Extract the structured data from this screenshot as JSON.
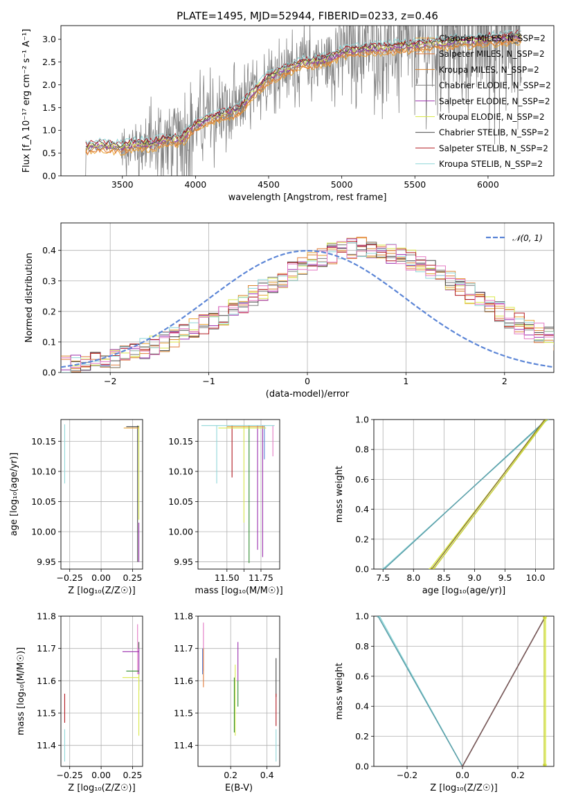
{
  "figure": {
    "title": "PLATE=1495, MJD=52944, FIBERID=0233, z=0.46"
  },
  "colors": {
    "series": [
      "#e8a233",
      "#e07b3a",
      "#d9822b",
      "#7a7a7a",
      "#9b2fae",
      "#d9e84a",
      "#444444",
      "#b0171f",
      "#8fd6d8"
    ],
    "gaussian": "#5b85d6",
    "grid": "#b0b0b0"
  },
  "chart_data": [
    {
      "id": "spectrum",
      "type": "line",
      "title": "PLATE=1495, MJD=52944, FIBERID=0233, z=0.46",
      "xlabel": "wavelength [Angstrom, rest frame]",
      "ylabel": "Flux [f_λ 10⁻¹⁷ erg cm⁻² s⁻¹ A⁻¹]",
      "xlim": [
        3080,
        6450
      ],
      "ylim": [
        0,
        3.3
      ],
      "xticks": [
        3500,
        4000,
        4500,
        5000,
        5500,
        6000
      ],
      "yticks": [
        0.0,
        0.5,
        1.0,
        1.5,
        2.0,
        2.5,
        3.0
      ],
      "grid": false,
      "legend_position": "top-right",
      "series": [
        {
          "name": "Chabrier MILES, N_SSP=2",
          "color": "#e8a233"
        },
        {
          "name": "Salpeter MILES, N_SSP=2",
          "color": "#e07b3a"
        },
        {
          "name": "Kroupa MILES, N_SSP=2",
          "color": "#d9822b"
        },
        {
          "name": "Chabrier ELODIE, N_SSP=2",
          "color": "#7a7a7a"
        },
        {
          "name": "Salpeter ELODIE, N_SSP=2",
          "color": "#9b2fae"
        },
        {
          "name": "Kroupa ELODIE, N_SSP=2",
          "color": "#d9e84a"
        },
        {
          "name": "Chabrier STELIB, N_SSP=2",
          "color": "#444444"
        },
        {
          "name": "Salpeter STELIB, N_SSP=2",
          "color": "#b0171f"
        },
        {
          "name": "Kroupa STELIB, N_SSP=2",
          "color": "#8fd6d8"
        }
      ],
      "model_trend": {
        "x": [
          3250,
          3300,
          3400,
          3500,
          3600,
          3700,
          3800,
          3900,
          4000,
          4100,
          4200,
          4300,
          4400,
          4500,
          4600,
          4700,
          4800,
          4900,
          5000,
          5100,
          5200,
          5300,
          5400,
          5500,
          5600,
          5700,
          5800,
          5900,
          6000,
          6100,
          6200
        ],
        "y": [
          0.6,
          0.65,
          0.65,
          0.62,
          0.7,
          0.68,
          0.8,
          0.78,
          1.1,
          1.25,
          1.35,
          1.45,
          1.85,
          2.15,
          2.3,
          2.45,
          2.5,
          2.55,
          2.7,
          2.75,
          2.8,
          2.8,
          2.85,
          2.85,
          2.9,
          2.9,
          2.95,
          2.95,
          3.0,
          3.0,
          3.05
        ]
      },
      "data_envelope": {
        "x": [
          3500,
          3600,
          3700,
          3800,
          3900,
          4000,
          4100,
          4200,
          4300,
          4400,
          4500,
          4600,
          4700,
          4800,
          4900,
          5000,
          5100,
          5200,
          5300,
          5400,
          5500,
          5600,
          5700,
          5800,
          5900,
          6000,
          6100,
          6200
        ],
        "noise": [
          0.5,
          0.6,
          0.7,
          0.9,
          0.9,
          0.8,
          0.8,
          0.8,
          0.7,
          0.5,
          0.5,
          0.6,
          0.6,
          0.7,
          0.7,
          0.9,
          0.9,
          1.0,
          1.0,
          1.1,
          1.1,
          1.2,
          1.3,
          1.3,
          1.4,
          1.5,
          1.5,
          1.6
        ]
      }
    },
    {
      "id": "residuals",
      "type": "line",
      "xlabel": "(data-model)/error",
      "ylabel": "Normed distribution",
      "xlim": [
        -2.5,
        2.5
      ],
      "ylim": [
        0,
        0.49
      ],
      "xticks": [
        -2,
        -1,
        0,
        1,
        2
      ],
      "yticks": [
        0.0,
        0.1,
        0.2,
        0.3,
        0.4
      ],
      "grid": true,
      "legend_position": "top-right",
      "gaussian": {
        "label": "𝒩(0, 1)",
        "mu": 0,
        "sigma": 1
      },
      "histogram": {
        "bin_edges_start": -2.5,
        "bin_width": 0.1,
        "mean_profile": [
          0.02,
          0.025,
          0.03,
          0.035,
          0.04,
          0.05,
          0.06,
          0.07,
          0.08,
          0.09,
          0.1,
          0.115,
          0.13,
          0.145,
          0.16,
          0.175,
          0.19,
          0.21,
          0.23,
          0.25,
          0.27,
          0.29,
          0.31,
          0.33,
          0.35,
          0.365,
          0.38,
          0.39,
          0.4,
          0.405,
          0.41,
          0.405,
          0.4,
          0.39,
          0.38,
          0.37,
          0.355,
          0.34,
          0.32,
          0.3,
          0.28,
          0.26,
          0.24,
          0.22,
          0.2,
          0.18,
          0.16,
          0.145,
          0.13,
          0.115,
          0.1
        ]
      }
    },
    {
      "id": "age-vs-Z",
      "type": "scatter",
      "xlabel": "Z [log₁₀(Z/Z☉)]",
      "ylabel": "age  [log₁₀(age/yr)]",
      "xlim": [
        -0.32,
        0.33
      ],
      "ylim": [
        9.938,
        10.186
      ],
      "xticks": [
        -0.25,
        0.0,
        0.25
      ],
      "xticklabels": [
        "−0.25",
        "0.00",
        "0.25"
      ],
      "yticks": [
        9.95,
        10.0,
        10.05,
        10.1,
        10.15
      ],
      "grid": true,
      "error_bars": [
        {
          "x": -0.29,
          "y": 10.13,
          "ylo": 10.08,
          "yhi": 10.178,
          "color": "#8fd6d8"
        },
        {
          "x": 0.29,
          "y": 10.06,
          "ylo": 9.95,
          "yhi": 10.176,
          "color": "#444444"
        },
        {
          "x": 0.3,
          "y": 10.1,
          "ylo": 10.02,
          "yhi": 10.176,
          "color": "#d9e84a"
        },
        {
          "x": 0.3,
          "y": 10.0,
          "ylo": 9.95,
          "yhi": 10.015,
          "color": "#9b2fae"
        }
      ],
      "x_error_bars": [
        {
          "y": 10.172,
          "xlo": 0.18,
          "xhi": 0.3,
          "color": "#e8a233"
        },
        {
          "y": 10.174,
          "xlo": 0.2,
          "xhi": 0.3,
          "color": "#444444"
        }
      ]
    },
    {
      "id": "age-vs-mass",
      "type": "scatter",
      "xlabel": "mass [log₁₀(M/M☉)]",
      "ylabel": "",
      "xlim": [
        11.33,
        11.81
      ],
      "ylim": [
        9.938,
        10.186
      ],
      "xticks": [
        11.5,
        11.6,
        11.7
      ],
      "xticklabels": [
        "11.50",
        "",
        "11.75"
      ],
      "yticks": [
        9.95,
        10.0,
        10.05,
        10.1,
        10.15
      ],
      "grid": true,
      "y_error_bars": [
        {
          "x": 11.44,
          "ylo": 10.08,
          "yhi": 10.176,
          "color": "#8fd6d8"
        },
        {
          "x": 11.53,
          "ylo": 10.09,
          "yhi": 10.176,
          "color": "#b0171f"
        },
        {
          "x": 11.6,
          "ylo": 10.015,
          "yhi": 10.176,
          "color": "#d9e84a"
        },
        {
          "x": 11.63,
          "ylo": 9.948,
          "yhi": 10.176,
          "color": "#2d8a2d"
        },
        {
          "x": 11.68,
          "ylo": 9.97,
          "yhi": 10.176,
          "color": "#9b2fae"
        },
        {
          "x": 11.71,
          "ylo": 9.958,
          "yhi": 10.176,
          "color": "#9b2fae"
        },
        {
          "x": 11.72,
          "ylo": 10.12,
          "yhi": 10.176,
          "color": "#5b85d6"
        },
        {
          "x": 11.77,
          "ylo": 10.125,
          "yhi": 10.176,
          "color": "#e377c2"
        }
      ],
      "x_error_bars": [
        {
          "y": 10.176,
          "xlo": 11.35,
          "xhi": 11.78,
          "color": "#8fd6d8"
        },
        {
          "y": 10.174,
          "xlo": 11.5,
          "xhi": 11.72,
          "color": "#e8a233"
        },
        {
          "y": 10.172,
          "xlo": 11.45,
          "xhi": 11.73,
          "color": "#d9e84a"
        }
      ]
    },
    {
      "id": "massweight-vs-age",
      "type": "line",
      "xlabel": "age  [log₁₀(age/yr)]",
      "ylabel": "mass weight",
      "xlim": [
        7.35,
        10.3
      ],
      "ylim": [
        0,
        1.0
      ],
      "xticks": [
        7.5,
        8.0,
        8.5,
        9.0,
        9.5,
        10.0
      ],
      "yticks": [
        0.0,
        0.2,
        0.4,
        0.6,
        0.8,
        1.0
      ],
      "grid": true,
      "series": [
        {
          "x": [
            7.5,
            10.2
          ],
          "y": [
            0.0,
            1.0
          ],
          "color": "#8fd6d8"
        },
        {
          "x": [
            7.52,
            10.18
          ],
          "y": [
            0.0,
            1.0
          ],
          "color": "#5b9ea8"
        },
        {
          "x": [
            8.27,
            10.17
          ],
          "y": [
            0.0,
            1.0
          ],
          "color": "#d9e84a"
        },
        {
          "x": [
            8.3,
            10.15
          ],
          "y": [
            0.0,
            1.0
          ],
          "color": "#8a7a30"
        },
        {
          "x": [
            8.33,
            10.18
          ],
          "y": [
            0.0,
            1.0
          ],
          "color": "#c9d23a"
        }
      ]
    },
    {
      "id": "mass-vs-Z",
      "type": "scatter",
      "xlabel": "Z [log₁₀(Z/Z☉)]",
      "ylabel": "mass [log₁₀(M/M☉)]",
      "xlim": [
        -0.32,
        0.33
      ],
      "ylim": [
        11.335,
        11.8
      ],
      "xticks": [
        -0.25,
        0.0,
        0.25
      ],
      "xticklabels": [
        "−0.25",
        "0.00",
        "0.25"
      ],
      "yticks": [
        11.4,
        11.5,
        11.6,
        11.7,
        11.8
      ],
      "grid": true,
      "y_error_bars": [
        {
          "x": -0.29,
          "ylo": 11.47,
          "yhi": 11.56,
          "color": "#b0171f"
        },
        {
          "x": -0.29,
          "ylo": 11.35,
          "yhi": 11.45,
          "color": "#8fd6d8"
        },
        {
          "x": 0.29,
          "ylo": 11.62,
          "yhi": 11.775,
          "color": "#e377c2"
        },
        {
          "x": 0.3,
          "ylo": 11.57,
          "yhi": 11.72,
          "color": "#444444"
        },
        {
          "x": 0.3,
          "ylo": 11.43,
          "yhi": 11.62,
          "color": "#d9e84a"
        },
        {
          "x": 0.3,
          "ylo": 11.62,
          "yhi": 11.7,
          "color": "#9b2fae"
        }
      ],
      "x_error_bars": [
        {
          "y": 11.69,
          "xlo": 0.17,
          "xhi": 0.3,
          "color": "#9b2fae"
        },
        {
          "y": 11.63,
          "xlo": 0.2,
          "xhi": 0.3,
          "color": "#2d8a2d"
        },
        {
          "y": 11.61,
          "xlo": 0.17,
          "xhi": 0.3,
          "color": "#d9e84a"
        }
      ]
    },
    {
      "id": "mass-vs-ebv",
      "type": "scatter",
      "xlabel": "E(B-V)",
      "ylabel": "",
      "xlim": [
        0.02,
        0.47
      ],
      "ylim": [
        11.335,
        11.8
      ],
      "xticks": [
        0.2,
        0.4
      ],
      "xticklabels": [
        "0.2",
        "0.4"
      ],
      "yticks": [
        11.4,
        11.5,
        11.6,
        11.7,
        11.8
      ],
      "grid": true,
      "y_error_bars": [
        {
          "x": 0.05,
          "ylo": 11.63,
          "yhi": 11.78,
          "color": "#e377c2"
        },
        {
          "x": 0.05,
          "ylo": 11.58,
          "yhi": 11.7,
          "color": "#e07b3a"
        },
        {
          "x": 0.045,
          "ylo": 11.62,
          "yhi": 11.7,
          "color": "#5b85d6"
        },
        {
          "x": 0.22,
          "ylo": 11.44,
          "yhi": 11.61,
          "color": "#2d8a2d"
        },
        {
          "x": 0.225,
          "ylo": 11.43,
          "yhi": 11.65,
          "color": "#d9e84a"
        },
        {
          "x": 0.24,
          "ylo": 11.6,
          "yhi": 11.72,
          "color": "#9b2fae"
        },
        {
          "x": 0.24,
          "ylo": 11.52,
          "yhi": 11.6,
          "color": "#2d8a2d"
        },
        {
          "x": 0.45,
          "ylo": 11.55,
          "yhi": 11.67,
          "color": "#444444"
        },
        {
          "x": 0.45,
          "ylo": 11.46,
          "yhi": 11.56,
          "color": "#b0171f"
        },
        {
          "x": 0.45,
          "ylo": 11.35,
          "yhi": 11.45,
          "color": "#8fd6d8"
        }
      ]
    },
    {
      "id": "massweight-vs-Z",
      "type": "line",
      "xlabel": "Z [log₁₀(Z/Z☉)]",
      "ylabel": "mass weight",
      "xlim": [
        -0.32,
        0.33
      ],
      "ylim": [
        0,
        1.0
      ],
      "xticks": [
        -0.2,
        0.0,
        0.2
      ],
      "xticklabels": [
        "−0.2",
        "0.0",
        "0.2"
      ],
      "yticks": [
        0.0,
        0.2,
        0.4,
        0.6,
        0.8,
        1.0
      ],
      "grid": true,
      "series": [
        {
          "x": [
            -0.3,
            0.0
          ],
          "y": [
            1.0,
            0.0
          ],
          "color": "#8fd6d8"
        },
        {
          "x": [
            -0.305,
            0.0
          ],
          "y": [
            1.0,
            0.0
          ],
          "color": "#5b9ea8"
        },
        {
          "x": [
            0.0,
            0.3
          ],
          "y": [
            0.0,
            1.0
          ],
          "color": "#5a4a4a"
        },
        {
          "x": [
            0.0,
            0.3
          ],
          "y": [
            0.0,
            1.0
          ],
          "color": "#7a5a5a"
        },
        {
          "x": [
            0.3,
            0.3
          ],
          "y": [
            0.01,
            0.99
          ],
          "color": "#d9e84a"
        },
        {
          "x": [
            0.295,
            0.295
          ],
          "y": [
            0.01,
            0.99
          ],
          "color": "#c9d23a"
        }
      ]
    }
  ]
}
